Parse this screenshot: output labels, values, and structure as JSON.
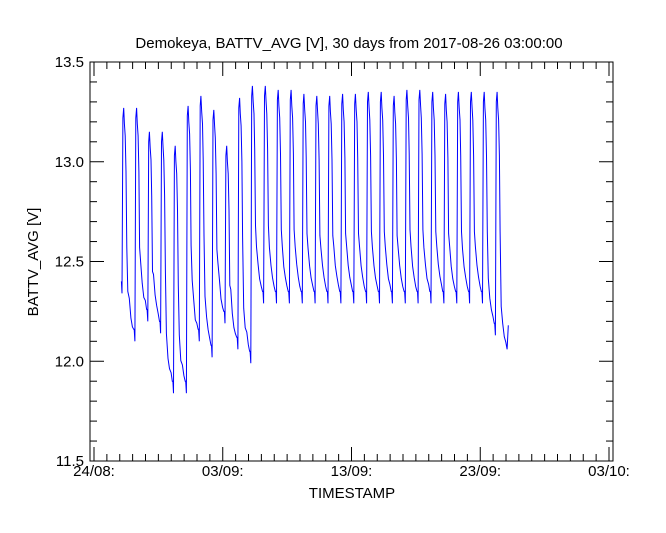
{
  "chart_data": {
    "type": "line",
    "title": "Demokeya, BATTV_AVG [V], 30 days from  2017-08-26 03:00:00",
    "xlabel": "TIMESTAMP",
    "ylabel": "BATTV_AVG [V]",
    "xlim_days_from_aug24": [
      0,
      40
    ],
    "ylim": [
      11.5,
      13.5
    ],
    "x_ticks": [
      {
        "day": 0,
        "label": "24/08:"
      },
      {
        "day": 10,
        "label": "03/09:"
      },
      {
        "day": 20,
        "label": "13/09:"
      },
      {
        "day": 30,
        "label": "23/09:"
      },
      {
        "day": 40,
        "label": "03/10:"
      }
    ],
    "y_ticks": [
      {
        "value": 11.5,
        "label": "11.5"
      },
      {
        "value": 12.0,
        "label": "12.0"
      },
      {
        "value": 12.5,
        "label": "12.5"
      },
      {
        "value": 13.0,
        "label": "13.0"
      },
      {
        "value": 13.5,
        "label": "13.5"
      }
    ],
    "series": [
      {
        "name": "BATTV_AVG",
        "color": "#0000ff",
        "start_day": 2.125,
        "start_value": 12.4,
        "end_value": 12.18,
        "daily_peaks": [
          13.27,
          13.27,
          13.15,
          13.15,
          13.08,
          13.28,
          13.33,
          13.26,
          13.08,
          13.32,
          13.38,
          13.38,
          13.36,
          13.36,
          13.34,
          13.33,
          13.33,
          13.34,
          13.34,
          13.35,
          13.35,
          13.33,
          13.36,
          13.36,
          13.35,
          13.34,
          13.35,
          13.35,
          13.35,
          13.35
        ],
        "daily_troughs": [
          12.16,
          12.26,
          12.2,
          11.9,
          11.9,
          12.16,
          12.08,
          12.25,
          12.12,
          12.05,
          12.35,
          12.35,
          12.35,
          12.35,
          12.35,
          12.35,
          12.35,
          12.35,
          12.35,
          12.35,
          12.35,
          12.35,
          12.35,
          12.35,
          12.35,
          12.35,
          12.35,
          12.35,
          12.19,
          12.06
        ]
      }
    ]
  }
}
